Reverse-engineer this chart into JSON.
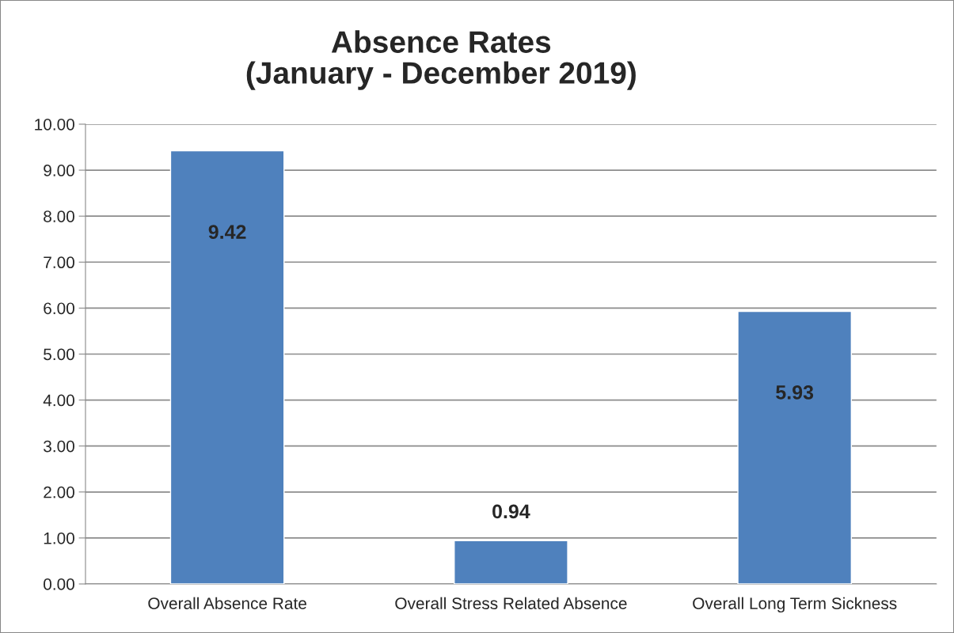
{
  "chart_data": {
    "type": "bar",
    "title": "Absence Rates\n(January - December 2019)",
    "categories": [
      "Overall Absence Rate",
      "Overall Stress Related Absence",
      "Overall Long Term Sickness"
    ],
    "values": [
      9.42,
      0.94,
      5.93
    ],
    "color": "#4f81bd",
    "ylim": [
      0,
      10
    ],
    "yticks": [
      {
        "value": 0,
        "label": "0.00"
      },
      {
        "value": 1,
        "label": "1.00"
      },
      {
        "value": 2,
        "label": "2.00"
      },
      {
        "value": 3,
        "label": "3.00"
      },
      {
        "value": 4,
        "label": "4.00"
      },
      {
        "value": 5,
        "label": "5.00"
      },
      {
        "value": 6,
        "label": "6.00"
      },
      {
        "value": 7,
        "label": "7.00"
      },
      {
        "value": 8,
        "label": "8.00"
      },
      {
        "value": 9,
        "label": "9.00"
      },
      {
        "value": 10,
        "label": "10.00"
      }
    ],
    "grid": "y",
    "data_labels": true,
    "legend": false
  }
}
